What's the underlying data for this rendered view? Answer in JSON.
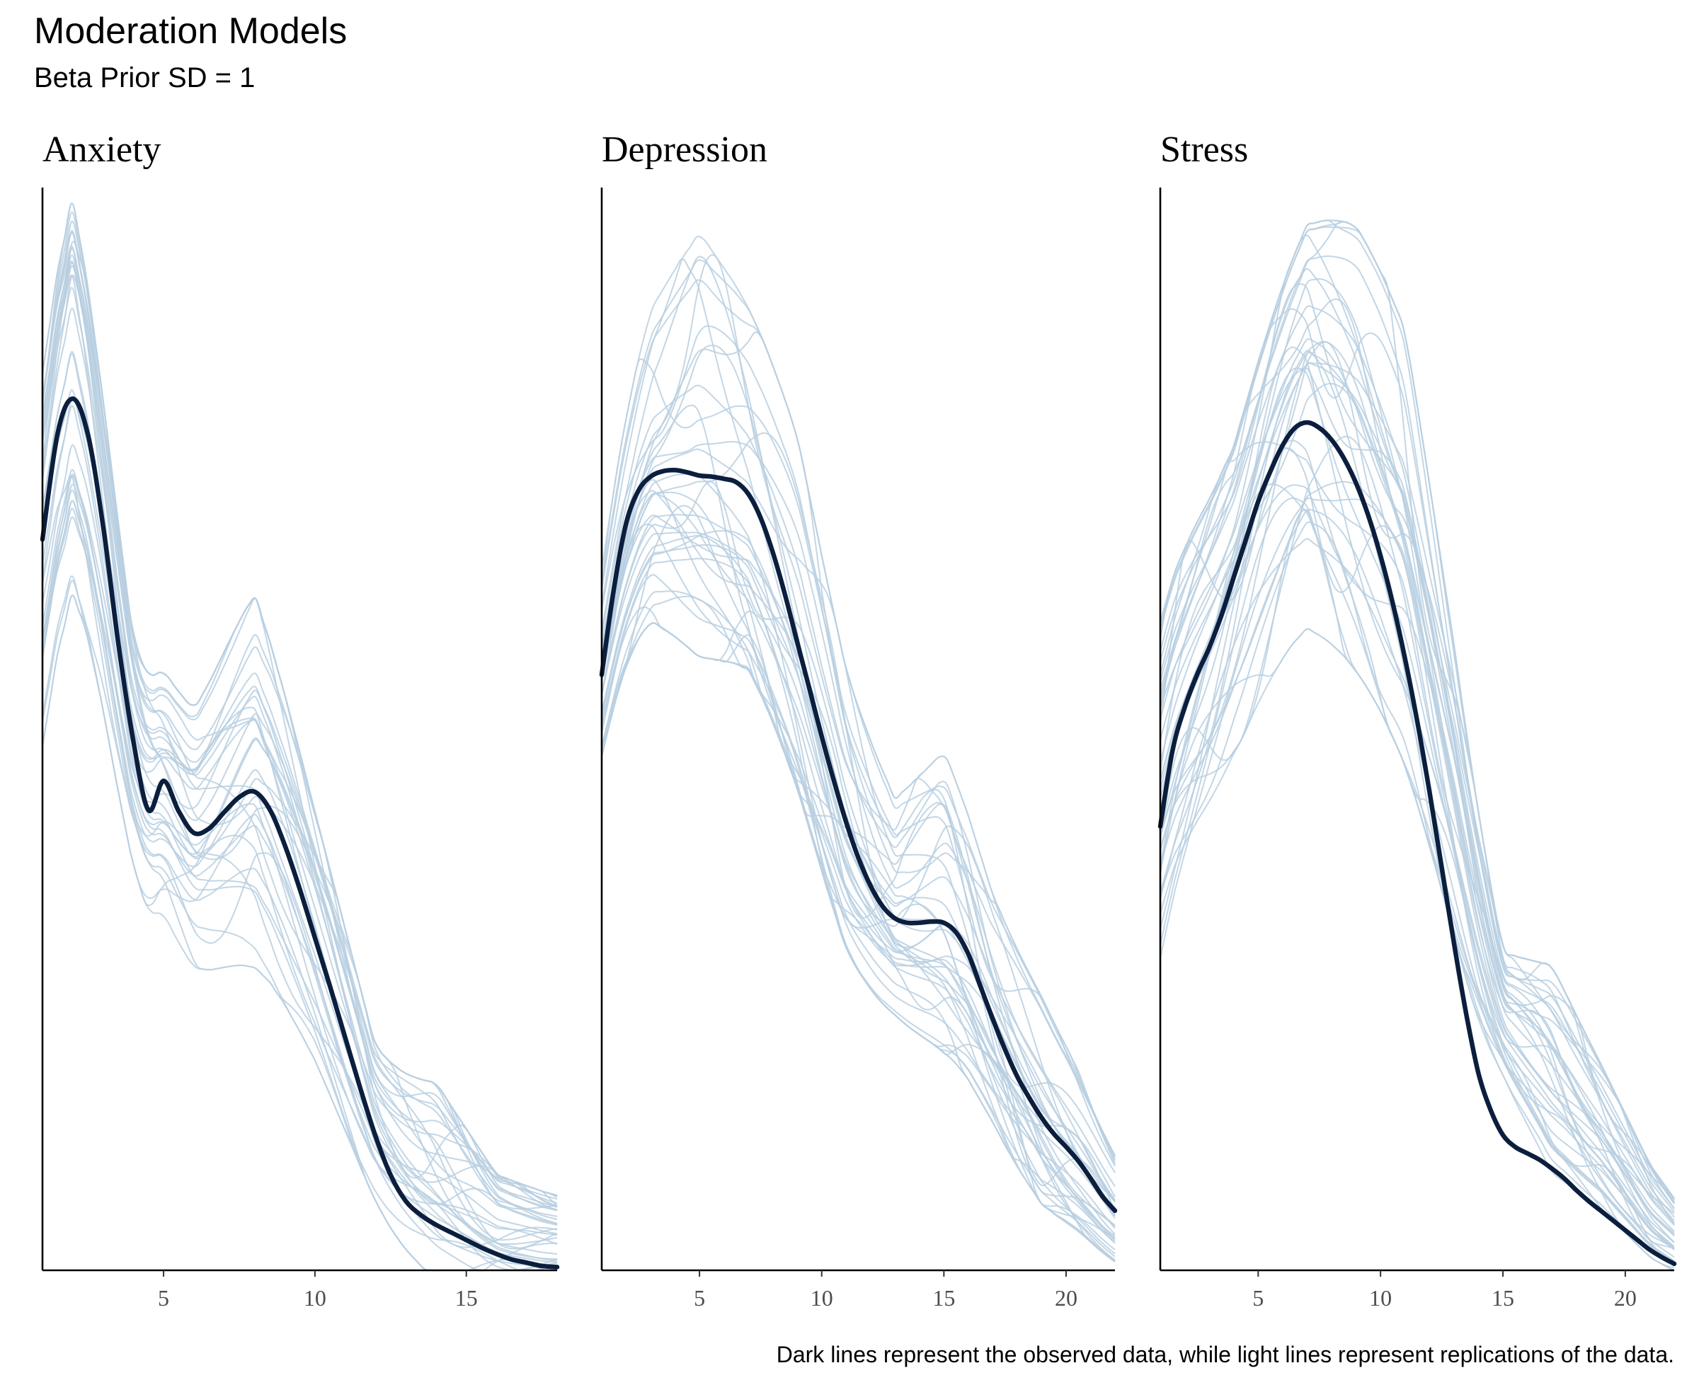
{
  "colors": {
    "observed": "#0b1e3d",
    "replicated": "#b9cfe0",
    "axis": "#000000",
    "tick_text": "#4d4d4d"
  },
  "chart_data": {
    "type": "line",
    "title": "Moderation Models",
    "subtitle": "Beta Prior SD = 1",
    "caption": "Dark lines represent the observed data, while light lines represent replications of the data.",
    "plot_kind": "posterior predictive density overlay",
    "legend": "none",
    "grid": false,
    "y_axis_visible": true,
    "y_tick_labels": false,
    "replicate_count": 40,
    "facets": [
      {
        "name": "Anxiety",
        "xlim": [
          1,
          18
        ],
        "ylim": [
          0,
          0.1
        ],
        "x_ticks": [
          5,
          10,
          15
        ],
        "observed": {
          "x": [
            1,
            1.5,
            2,
            2.5,
            3,
            3.5,
            4,
            4.5,
            5,
            5.5,
            6,
            6.5,
            7,
            7.5,
            8,
            8.5,
            9,
            9.5,
            10,
            10.5,
            11,
            11.5,
            12,
            12.5,
            13,
            13.5,
            14,
            14.5,
            15,
            15.5,
            16,
            16.5,
            17,
            17.5,
            18
          ],
          "y": [
            0.0675,
            0.0773,
            0.0805,
            0.0772,
            0.0688,
            0.058,
            0.0489,
            0.0425,
            0.0452,
            0.0424,
            0.0404,
            0.0408,
            0.0423,
            0.0437,
            0.0442,
            0.0426,
            0.0393,
            0.0352,
            0.0307,
            0.0262,
            0.0215,
            0.0168,
            0.0124,
            0.0088,
            0.0064,
            0.0051,
            0.0042,
            0.0035,
            0.0028,
            0.0021,
            0.0015,
            0.001,
            0.0007,
            0.0004,
            0.0003
          ]
        },
        "replications": {
          "stats": [
            {
              "name": "spread_min",
              "x": [
                1,
                2,
                4,
                6,
                8,
                10,
                12,
                14,
                16,
                18
              ],
              "y": [
                0.046,
                0.062,
                0.036,
                0.027,
                0.028,
                0.019,
                0.007,
                0.002,
                0.0004,
                0
              ]
            },
            {
              "name": "spread_max",
              "x": [
                1,
                2,
                4,
                6,
                8,
                10,
                12,
                14,
                16,
                18
              ],
              "y": [
                0.082,
                0.1,
                0.058,
                0.052,
                0.064,
                0.043,
                0.022,
                0.021,
                0.011,
                0.009
              ]
            }
          ]
        }
      },
      {
        "name": "Depression",
        "xlim": [
          1,
          22
        ],
        "ylim": [
          0,
          0.1
        ],
        "x_ticks": [
          5,
          10,
          15,
          20
        ],
        "observed": {
          "x": [
            1,
            1.5,
            2,
            2.5,
            3,
            3.5,
            4,
            4.5,
            5,
            5.5,
            6,
            6.5,
            7,
            7.5,
            8,
            8.5,
            9,
            9.5,
            10,
            10.5,
            11,
            11.5,
            12,
            12.5,
            13,
            13.5,
            14,
            14.5,
            15,
            15.5,
            16,
            16.5,
            17,
            17.5,
            18,
            18.5,
            19,
            19.5,
            20,
            20.5,
            21,
            21.5,
            22
          ],
          "y": [
            0.055,
            0.063,
            0.069,
            0.072,
            0.0733,
            0.0738,
            0.0739,
            0.0737,
            0.0734,
            0.0733,
            0.0731,
            0.0728,
            0.0717,
            0.0695,
            0.0663,
            0.0624,
            0.058,
            0.0537,
            0.0493,
            0.0452,
            0.0414,
            0.0381,
            0.0355,
            0.0336,
            0.0325,
            0.0321,
            0.0321,
            0.0322,
            0.0321,
            0.0312,
            0.0292,
            0.0262,
            0.0232,
            0.0204,
            0.0179,
            0.0159,
            0.0141,
            0.0126,
            0.0114,
            0.0101,
            0.0085,
            0.0068,
            0.0055
          ]
        },
        "replications": {
          "stats": [
            {
              "name": "spread_min",
              "x": [
                1,
                3,
                5,
                7,
                9,
                11,
                13,
                15,
                17,
                19,
                21,
                22
              ],
              "y": [
                0.048,
                0.06,
                0.058,
                0.055,
                0.046,
                0.03,
                0.024,
                0.021,
                0.014,
                0.007,
                0.003,
                0.001
              ]
            },
            {
              "name": "spread_max",
              "x": [
                1,
                3,
                5,
                7,
                9,
                11,
                13,
                15,
                17,
                19,
                21,
                22
              ],
              "y": [
                0.066,
                0.09,
                0.099,
                0.09,
                0.08,
                0.057,
                0.045,
                0.05,
                0.036,
                0.027,
                0.017,
                0.012
              ]
            }
          ]
        }
      },
      {
        "name": "Stress",
        "xlim": [
          1,
          22
        ],
        "ylim": [
          0,
          0.1
        ],
        "x_ticks": [
          5,
          10,
          15,
          20
        ],
        "observed": {
          "x": [
            1,
            1.5,
            2,
            2.5,
            3,
            3.5,
            4,
            4.5,
            5,
            5.5,
            6,
            6.5,
            7,
            7.5,
            8,
            8.5,
            9,
            9.5,
            10,
            10.5,
            11,
            11.5,
            12,
            12.5,
            13,
            13.5,
            14,
            14.5,
            15,
            15.5,
            16,
            16.5,
            17,
            17.5,
            18,
            18.5,
            19,
            19.5,
            20,
            20.5,
            21,
            21.5,
            22
          ],
          "y": [
            0.041,
            0.048,
            0.052,
            0.055,
            0.0575,
            0.0605,
            0.064,
            0.0675,
            0.071,
            0.0738,
            0.0762,
            0.0778,
            0.0783,
            0.0778,
            0.0767,
            0.075,
            0.0727,
            0.0697,
            0.066,
            0.0616,
            0.0565,
            0.0507,
            0.0442,
            0.0372,
            0.0302,
            0.0237,
            0.0182,
            0.0148,
            0.0125,
            0.0114,
            0.0108,
            0.0102,
            0.0094,
            0.0085,
            0.0074,
            0.0064,
            0.0055,
            0.0046,
            0.0037,
            0.0028,
            0.0019,
            0.0012,
            0.0006
          ]
        },
        "replications": {
          "stats": [
            {
              "name": "spread_min",
              "x": [
                1,
                4,
                7,
                9,
                11,
                13,
                15,
                17,
                19,
                21,
                22
              ],
              "y": [
                0.03,
                0.045,
                0.058,
                0.057,
                0.054,
                0.042,
                0.027,
                0.016,
                0.011,
                0.004,
                0.002
              ]
            },
            {
              "name": "spread_max",
              "x": [
                1,
                4,
                7,
                9,
                11,
                13,
                15,
                17,
                19,
                21,
                22
              ],
              "y": [
                0.063,
                0.075,
                0.097,
                0.1,
                0.096,
                0.07,
                0.039,
                0.036,
                0.025,
                0.013,
                0.009
              ]
            }
          ]
        }
      }
    ]
  }
}
